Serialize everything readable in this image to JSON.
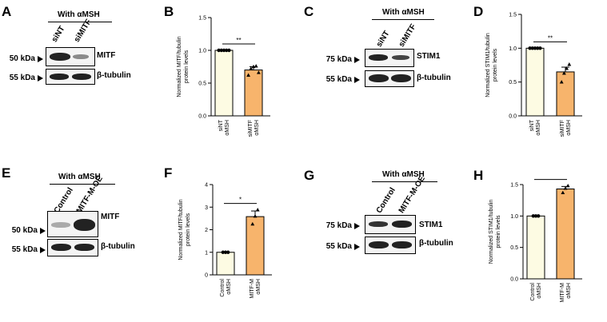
{
  "panels": {
    "A": {
      "letter": "A",
      "header": "With αMSH",
      "lanes": [
        "siNT",
        "siMITF"
      ],
      "kda": [
        "50 kDa",
        "55 kDa"
      ],
      "labels": [
        "MITF",
        "β-tubulin"
      ]
    },
    "C": {
      "letter": "C",
      "header": "With αMSH",
      "lanes": [
        "siNT",
        "siMITF"
      ],
      "kda": [
        "75 kDa",
        "55 kDa"
      ],
      "labels": [
        "STIM1",
        "β-tubulin"
      ]
    },
    "E": {
      "letter": "E",
      "header": "With αMSH",
      "lanes": [
        "Control",
        "MITF-M-OE"
      ],
      "kda": [
        "50 kDa",
        "55 kDa"
      ],
      "labels": [
        "MITF",
        "β-tubulin"
      ]
    },
    "G": {
      "letter": "G",
      "header": "With αMSH",
      "lanes": [
        "Control",
        "MITF-M-OE"
      ],
      "kda": [
        "75 kDa",
        "55 kDa"
      ],
      "labels": [
        "STIM1",
        "β-tubulin"
      ]
    }
  },
  "chart_data": [
    {
      "panel": "B",
      "type": "bar",
      "title": "",
      "ylabel_line1": "Normalized MITF/tubulin",
      "ylabel_line2": "protein levels",
      "categories": [
        [
          "siNT",
          "αMSH"
        ],
        [
          "siMITF",
          "αMSH"
        ]
      ],
      "values": [
        1.0,
        0.7
      ],
      "errors": [
        0.0,
        0.05
      ],
      "ylim": [
        0,
        1.5
      ],
      "ticks": [
        "0.0",
        "0.5",
        "1.0",
        "1.5"
      ],
      "tick_values": [
        0,
        0.5,
        1.0,
        1.5
      ],
      "points": [
        [
          1,
          1,
          1,
          1,
          1
        ],
        [
          0.62,
          0.72,
          0.75,
          0.76,
          0.66
        ]
      ],
      "significance": "**",
      "colors": [
        "#fdfbe3",
        "#f7b46c"
      ]
    },
    {
      "panel": "D",
      "type": "bar",
      "title": "",
      "ylabel_line1": "Normalized STIM1/tubulin",
      "ylabel_line2": "protein levels",
      "categories": [
        [
          "siNT",
          "αMSH"
        ],
        [
          "siMITF",
          "αMSH"
        ]
      ],
      "values": [
        1.0,
        0.65
      ],
      "errors": [
        0.0,
        0.07
      ],
      "ylim": [
        0,
        1.5
      ],
      "ticks": [
        "0.0",
        "0.5",
        "1.0",
        "1.5"
      ],
      "tick_values": [
        0,
        0.5,
        1.0,
        1.5
      ],
      "points": [
        [
          1,
          1,
          1,
          1,
          1
        ],
        [
          0.5,
          0.63,
          0.7,
          0.76
        ]
      ],
      "significance": "**",
      "colors": [
        "#fdfbe3",
        "#f7b46c"
      ]
    },
    {
      "panel": "F",
      "type": "bar",
      "title": "",
      "ylabel_line1": "Normalized MITF/tubulin",
      "ylabel_line2": "protein levels",
      "categories": [
        [
          "Control",
          "αMSH"
        ],
        [
          "MITF-M",
          "αMSH"
        ]
      ],
      "values": [
        1.0,
        2.58
      ],
      "errors": [
        0.0,
        0.25
      ],
      "ylim": [
        0,
        4
      ],
      "ticks": [
        "0",
        "1",
        "2",
        "3",
        "4"
      ],
      "tick_values": [
        0,
        1,
        2,
        3,
        4
      ],
      "points": [
        [
          1,
          1,
          1
        ],
        [
          2.25,
          2.6,
          2.88
        ]
      ],
      "significance": "*",
      "colors": [
        "#fdfbe3",
        "#f7b46c"
      ]
    },
    {
      "panel": "H",
      "type": "bar",
      "title": "",
      "ylabel_line1": "Normalized STIM1/tubulin",
      "ylabel_line2": "protein levels",
      "categories": [
        [
          "Control",
          "αMSH"
        ],
        [
          "MITF-M",
          "αMSH"
        ]
      ],
      "values": [
        1.0,
        1.43
      ],
      "errors": [
        0.0,
        0.04
      ],
      "ylim": [
        0,
        1.5
      ],
      "ticks": [
        "0.0",
        "0.5",
        "1.0",
        "1.5"
      ],
      "tick_values": [
        0,
        0.5,
        1.0,
        1.5
      ],
      "points": [
        [
          1,
          1,
          1
        ],
        [
          1.37,
          1.44,
          1.48
        ]
      ],
      "significance": "**",
      "colors": [
        "#fdfbe3",
        "#f7b46c"
      ]
    }
  ]
}
